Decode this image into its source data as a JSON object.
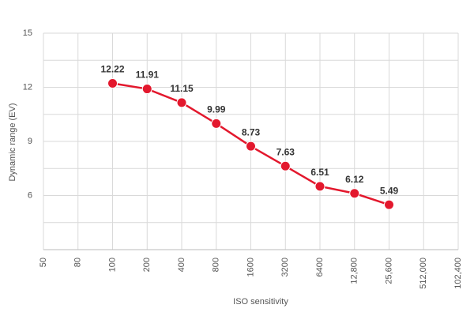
{
  "chart_data": {
    "type": "line",
    "xlabel": "ISO sensitivity",
    "ylabel": "Dynamic range (EV)",
    "categories": [
      "50",
      "80",
      "100",
      "200",
      "400",
      "800",
      "1600",
      "3200",
      "6400",
      "12,800",
      "25,600",
      "512,000",
      "102,400"
    ],
    "series": [
      {
        "name": null,
        "color": "#e3182d",
        "values": [
          null,
          null,
          12.22,
          11.91,
          11.15,
          9.99,
          8.73,
          7.63,
          6.51,
          6.12,
          5.49,
          null,
          null
        ]
      }
    ],
    "ylim": [
      3,
      15
    ],
    "yticks": [
      6,
      9,
      12,
      15
    ],
    "grid": true
  }
}
